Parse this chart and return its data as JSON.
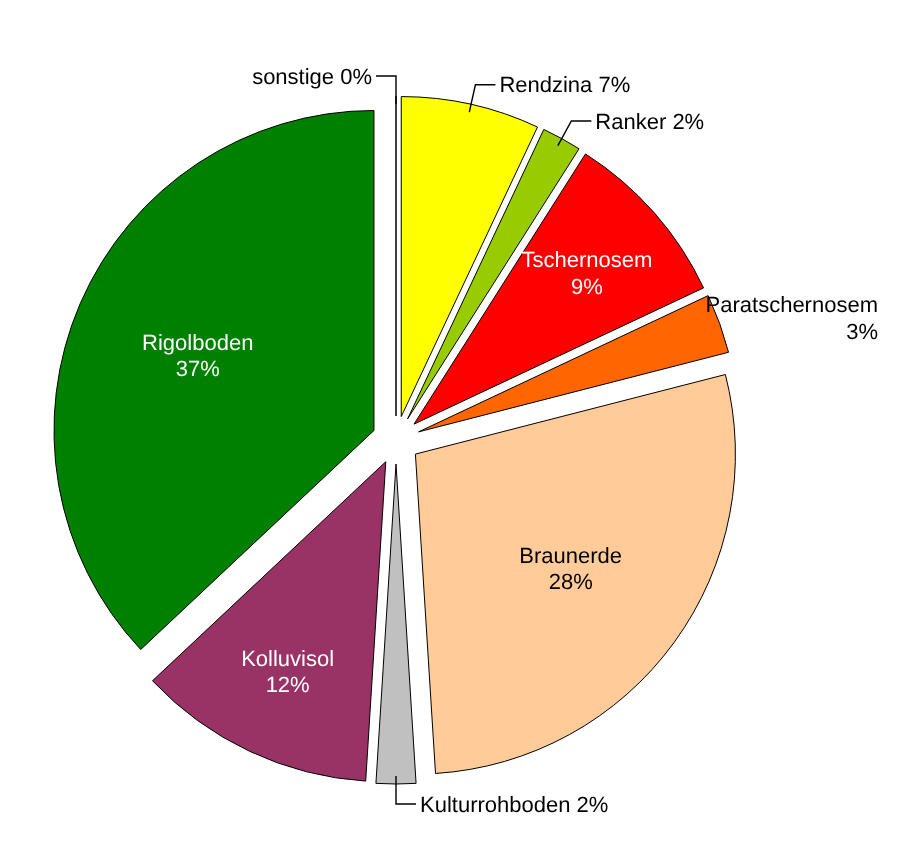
{
  "chart_data": {
    "type": "pie",
    "categories": [
      "sonstige",
      "Rendzina",
      "Ranker",
      "Tschernosem",
      "Paratschernosem",
      "Braunerde",
      "Kulturrohboden",
      "Kolluvisol",
      "Rigolboden"
    ],
    "values": [
      0,
      7,
      2,
      9,
      3,
      28,
      2,
      12,
      37
    ],
    "value_labels": [
      "0%",
      "7%",
      "2%",
      "9%",
      "3%",
      "28%",
      "2%",
      "12%",
      "37%"
    ],
    "colors": [
      "#ffffcc",
      "#ffff00",
      "#99cc00",
      "#ff0000",
      "#ff6600",
      "#ffcc99",
      "#c0c0c0",
      "#993366",
      "#008000"
    ]
  }
}
